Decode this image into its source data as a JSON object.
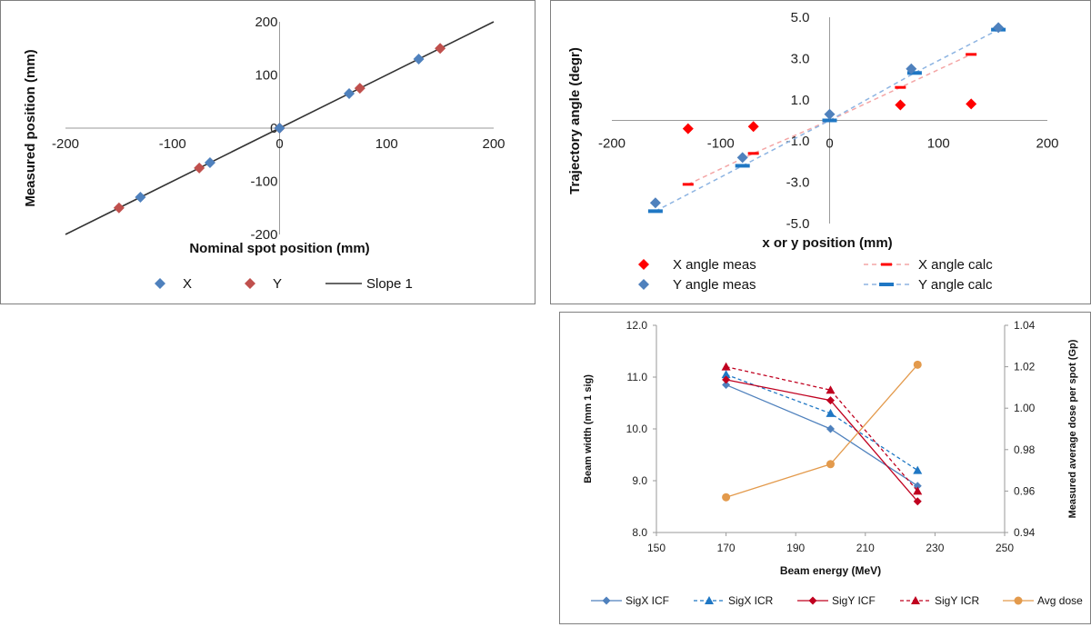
{
  "colors": {
    "x_blue": "#4F81BD",
    "y_red": "#C0504D",
    "red_bright": "#FF0000",
    "line_black": "#333333",
    "light_red": "#F4A6A6",
    "light_blue": "#8DB4E2",
    "mid_blue": "#1F77C4",
    "dark_red": "#C0001F",
    "orange": "#E39A4C"
  },
  "chart_data": [
    {
      "type": "scatter",
      "xlabel": "Nominal spot position (mm)",
      "ylabel": "Measured position (mm)",
      "xlim": [
        -200,
        200
      ],
      "ylim": [
        -200,
        200
      ],
      "xticks": [
        "-200",
        "-100",
        "0",
        "100",
        "200"
      ],
      "yticks": [
        "-200",
        "-100",
        "0",
        "100",
        "200"
      ],
      "grid": false,
      "legend_position": "bottom",
      "series": [
        {
          "name": "X",
          "marker": "diamond",
          "points": [
            [
              -130,
              -130
            ],
            [
              -65,
              -65
            ],
            [
              0,
              0
            ],
            [
              65,
              65
            ],
            [
              130,
              130
            ]
          ]
        },
        {
          "name": "Y",
          "marker": "diamond",
          "points": [
            [
              -150,
              -150
            ],
            [
              -75,
              -75
            ],
            [
              0,
              0
            ],
            [
              75,
              75
            ],
            [
              150,
              150
            ]
          ]
        },
        {
          "name": "Slope 1",
          "marker": "none",
          "points": [
            [
              -200,
              -200
            ],
            [
              200,
              200
            ]
          ]
        }
      ]
    },
    {
      "type": "scatter",
      "xlabel": "x or y position (mm)",
      "ylabel": "Trajectory angle (degr)",
      "xlim": [
        -200,
        200
      ],
      "ylim": [
        -5.0,
        5.0
      ],
      "xticks": [
        "-200",
        "-100",
        "0",
        "100",
        "200"
      ],
      "yticks": [
        "-5.0",
        "-3.0",
        "-1.0",
        "1.0",
        "3.0",
        "5.0"
      ],
      "grid": false,
      "legend_position": "bottom",
      "series": [
        {
          "name": "X angle meas",
          "marker": "diamond",
          "points": [
            [
              -130,
              -0.4
            ],
            [
              -70,
              -0.3
            ],
            [
              65,
              0.75
            ],
            [
              130,
              0.8
            ]
          ]
        },
        {
          "name": "Y angle meas",
          "marker": "diamond",
          "points": [
            [
              -160,
              -4.0
            ],
            [
              -80,
              -1.8
            ],
            [
              0,
              0.3
            ],
            [
              75,
              2.5
            ],
            [
              155,
              4.5
            ]
          ]
        },
        {
          "name": "X angle calc",
          "marker": "dash",
          "points": [
            [
              -130,
              -3.1
            ],
            [
              -70,
              -1.6
            ],
            [
              0,
              0
            ],
            [
              65,
              1.6
            ],
            [
              130,
              3.2
            ]
          ]
        },
        {
          "name": "Y angle calc",
          "marker": "dash",
          "points": [
            [
              -160,
              -4.4
            ],
            [
              -80,
              -2.2
            ],
            [
              0,
              0
            ],
            [
              78,
              2.3
            ],
            [
              155,
              4.4
            ]
          ]
        }
      ]
    },
    {
      "type": "line",
      "xlabel": "Beam energy (MeV)",
      "ylabel": "Beam width (mm 1 sig)",
      "ylabel2": "Measured average dose per spot (Gp)",
      "xlim": [
        150,
        250
      ],
      "ylim": [
        8.0,
        12.0
      ],
      "ylim2": [
        0.94,
        1.04
      ],
      "xticks": [
        "150",
        "170",
        "190",
        "210",
        "230",
        "250"
      ],
      "yticks": [
        "8.0",
        "9.0",
        "10.0",
        "11.0",
        "12.0"
      ],
      "yticks2": [
        "0.94",
        "0.96",
        "0.98",
        "1.00",
        "1.02",
        "1.04"
      ],
      "grid": false,
      "legend_position": "bottom",
      "series": [
        {
          "name": "SigX ICF",
          "axis": "left",
          "marker": "diamond",
          "style": "solid",
          "x": [
            170,
            200,
            225
          ],
          "values": [
            10.85,
            10.0,
            8.9
          ]
        },
        {
          "name": "SigX ICR",
          "axis": "left",
          "marker": "triangle",
          "style": "dashed",
          "x": [
            170,
            200,
            225
          ],
          "values": [
            11.05,
            10.3,
            9.2
          ]
        },
        {
          "name": "SigY ICF",
          "axis": "left",
          "marker": "diamond",
          "style": "solid",
          "x": [
            170,
            200,
            225
          ],
          "values": [
            10.95,
            10.55,
            8.6
          ]
        },
        {
          "name": "SigY ICR",
          "axis": "left",
          "marker": "triangle",
          "style": "dashed",
          "x": [
            170,
            200,
            225
          ],
          "values": [
            11.2,
            10.75,
            8.8
          ]
        },
        {
          "name": "Avg dose",
          "axis": "right",
          "marker": "circle",
          "style": "solid",
          "x": [
            170,
            200,
            225
          ],
          "values": [
            0.957,
            0.973,
            1.021
          ]
        }
      ]
    }
  ]
}
